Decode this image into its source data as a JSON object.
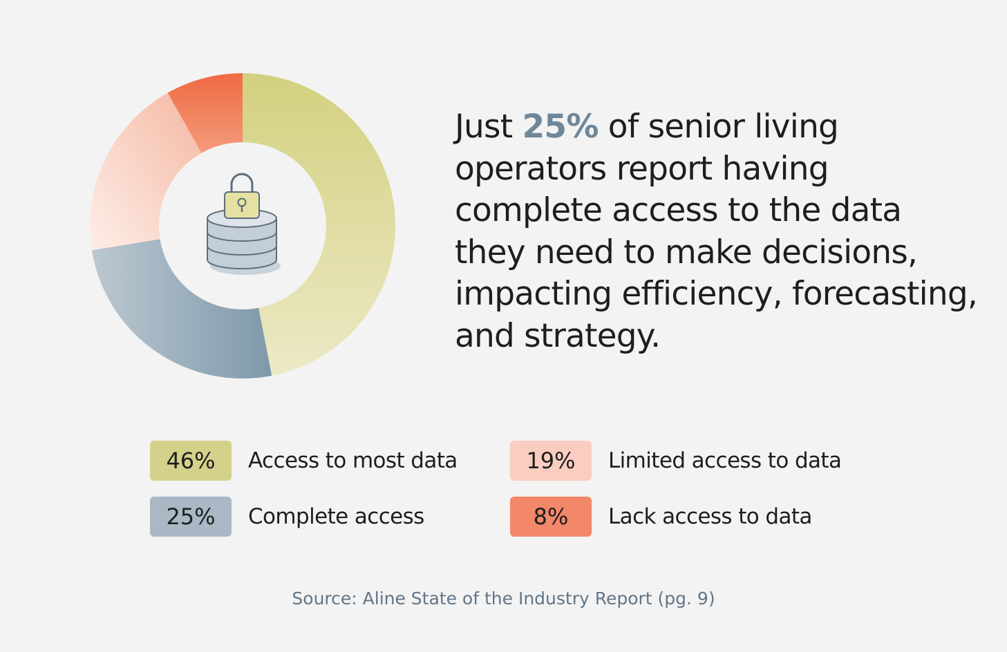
{
  "headline": {
    "pre": "Just ",
    "highlight": "25%",
    "post": " of senior living operators report having complete access to the data they need to make decisions, impacting efficiency, forecasting, and strategy."
  },
  "chart_data": {
    "type": "pie",
    "variant": "donut",
    "categories": [
      "Access to most data",
      "Complete access",
      "Limited access to data",
      "Lack access to data"
    ],
    "values": [
      46,
      25,
      19,
      8
    ],
    "value_labels": [
      "46%",
      "25%",
      "19%",
      "8%"
    ],
    "colors": [
      "#d4d18a",
      "#93a7b6",
      "#f9c8b9",
      "#f07a56"
    ],
    "center_icon": "database-lock-icon"
  },
  "legend": [
    {
      "value": "46%",
      "label": "Access to most data",
      "color": "#d4d18a"
    },
    {
      "value": "19%",
      "label": "Limited access to data",
      "color": "#f9cdbf"
    },
    {
      "value": "25%",
      "label": "Complete access",
      "color": "#a9b8c4"
    },
    {
      "value": "8%",
      "label": "Lack access to data",
      "color": "#f2876a"
    }
  ],
  "source": "Source: Aline State of the Industry Report (pg. 9)"
}
